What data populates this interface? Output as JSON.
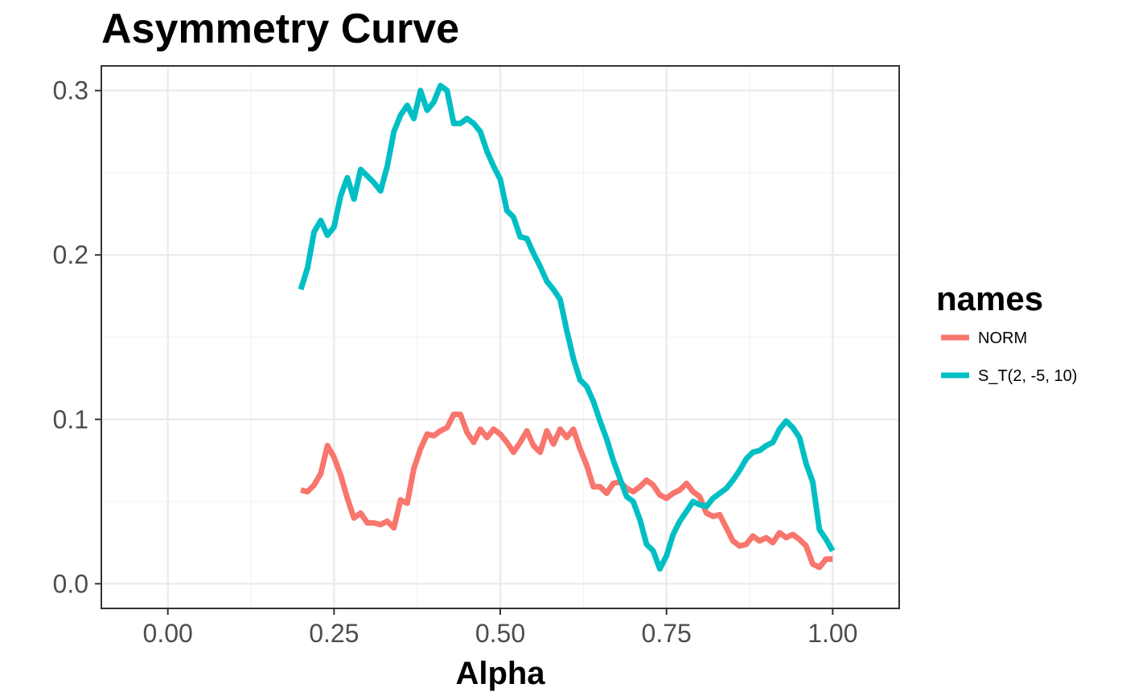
{
  "chart_data": {
    "type": "line",
    "title": "Asymmetry Curve",
    "xlabel": "Alpha",
    "ylabel": "",
    "xlim": [
      -0.1,
      1.1
    ],
    "ylim": [
      -0.015,
      0.315
    ],
    "x_ticks": [
      0.0,
      0.25,
      0.5,
      0.75,
      1.0
    ],
    "x_tick_labels": [
      "0.00",
      "0.25",
      "0.50",
      "0.75",
      "1.00"
    ],
    "y_ticks": [
      0.0,
      0.1,
      0.2,
      0.3
    ],
    "y_tick_labels": [
      "0.0",
      "0.1",
      "0.2",
      "0.3"
    ],
    "grid": true,
    "legend": {
      "title": "names",
      "position": "right"
    },
    "series": [
      {
        "name": "NORM",
        "color": "#F8766D",
        "x": [
          0.2,
          0.21,
          0.22,
          0.23,
          0.24,
          0.25,
          0.26,
          0.27,
          0.28,
          0.29,
          0.3,
          0.31,
          0.32,
          0.33,
          0.34,
          0.35,
          0.36,
          0.37,
          0.38,
          0.39,
          0.4,
          0.41,
          0.42,
          0.43,
          0.44,
          0.45,
          0.46,
          0.47,
          0.48,
          0.49,
          0.5,
          0.51,
          0.52,
          0.53,
          0.54,
          0.55,
          0.56,
          0.57,
          0.58,
          0.59,
          0.6,
          0.61,
          0.62,
          0.63,
          0.64,
          0.65,
          0.66,
          0.67,
          0.68,
          0.69,
          0.7,
          0.71,
          0.72,
          0.73,
          0.74,
          0.75,
          0.76,
          0.77,
          0.78,
          0.79,
          0.8,
          0.81,
          0.82,
          0.83,
          0.84,
          0.85,
          0.86,
          0.87,
          0.88,
          0.89,
          0.9,
          0.91,
          0.92,
          0.93,
          0.94,
          0.95,
          0.96,
          0.97,
          0.98,
          0.99,
          1.0
        ],
        "y": [
          0.057,
          0.056,
          0.06,
          0.067,
          0.084,
          0.077,
          0.066,
          0.052,
          0.04,
          0.043,
          0.037,
          0.037,
          0.036,
          0.038,
          0.034,
          0.051,
          0.049,
          0.07,
          0.082,
          0.091,
          0.09,
          0.093,
          0.095,
          0.103,
          0.103,
          0.092,
          0.086,
          0.094,
          0.089,
          0.094,
          0.091,
          0.086,
          0.08,
          0.086,
          0.093,
          0.084,
          0.08,
          0.093,
          0.085,
          0.094,
          0.089,
          0.094,
          0.082,
          0.072,
          0.059,
          0.059,
          0.055,
          0.061,
          0.062,
          0.058,
          0.056,
          0.059,
          0.063,
          0.06,
          0.054,
          0.052,
          0.055,
          0.057,
          0.061,
          0.056,
          0.053,
          0.043,
          0.041,
          0.042,
          0.034,
          0.026,
          0.023,
          0.024,
          0.029,
          0.026,
          0.028,
          0.025,
          0.031,
          0.028,
          0.03,
          0.027,
          0.023,
          0.012,
          0.01,
          0.015,
          0.015
        ]
      },
      {
        "name": "S_T(2, -5, 10)",
        "color": "#00BFC4",
        "x": [
          0.2,
          0.21,
          0.22,
          0.23,
          0.24,
          0.25,
          0.26,
          0.27,
          0.28,
          0.29,
          0.3,
          0.31,
          0.32,
          0.33,
          0.34,
          0.35,
          0.36,
          0.37,
          0.38,
          0.39,
          0.4,
          0.41,
          0.42,
          0.43,
          0.44,
          0.45,
          0.46,
          0.47,
          0.48,
          0.49,
          0.5,
          0.51,
          0.52,
          0.53,
          0.54,
          0.55,
          0.56,
          0.57,
          0.58,
          0.59,
          0.6,
          0.61,
          0.62,
          0.63,
          0.64,
          0.65,
          0.66,
          0.67,
          0.68,
          0.69,
          0.7,
          0.71,
          0.72,
          0.73,
          0.74,
          0.75,
          0.76,
          0.77,
          0.78,
          0.79,
          0.8,
          0.81,
          0.82,
          0.83,
          0.84,
          0.85,
          0.86,
          0.87,
          0.88,
          0.89,
          0.9,
          0.91,
          0.92,
          0.93,
          0.94,
          0.95,
          0.96,
          0.97,
          0.98,
          0.99,
          1.0
        ],
        "y": [
          0.179,
          0.192,
          0.214,
          0.221,
          0.212,
          0.217,
          0.236,
          0.247,
          0.234,
          0.252,
          0.248,
          0.244,
          0.239,
          0.254,
          0.275,
          0.285,
          0.291,
          0.283,
          0.3,
          0.288,
          0.293,
          0.303,
          0.3,
          0.28,
          0.28,
          0.283,
          0.28,
          0.275,
          0.263,
          0.254,
          0.246,
          0.227,
          0.223,
          0.211,
          0.21,
          0.201,
          0.193,
          0.184,
          0.179,
          0.173,
          0.154,
          0.137,
          0.124,
          0.12,
          0.111,
          0.099,
          0.088,
          0.075,
          0.064,
          0.053,
          0.05,
          0.039,
          0.024,
          0.02,
          0.009,
          0.017,
          0.03,
          0.038,
          0.044,
          0.05,
          0.048,
          0.047,
          0.052,
          0.055,
          0.058,
          0.063,
          0.069,
          0.076,
          0.08,
          0.081,
          0.084,
          0.086,
          0.094,
          0.099,
          0.095,
          0.089,
          0.073,
          0.062,
          0.033,
          0.027,
          0.02
        ]
      }
    ]
  }
}
